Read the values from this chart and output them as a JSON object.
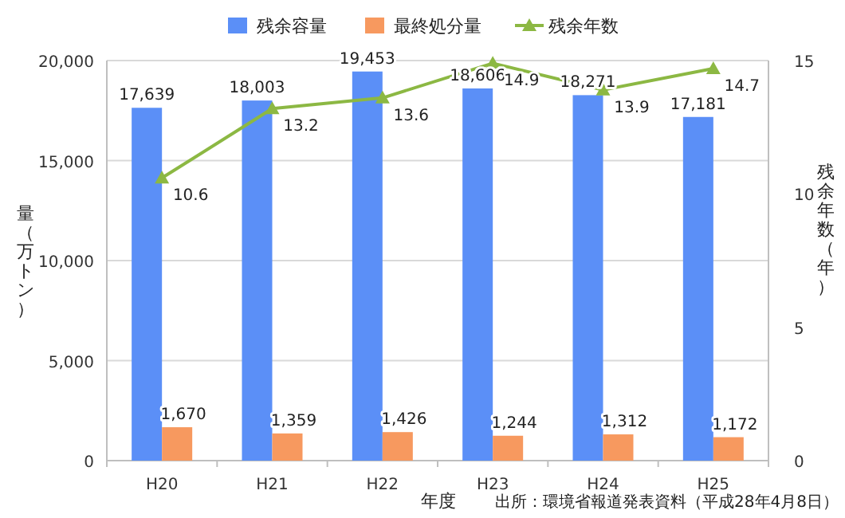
{
  "chart_data": {
    "type": "bar",
    "xlabel": "年度",
    "ylabel": "量（万トン）",
    "y2label": "残余年数（年）",
    "categories": [
      "H20",
      "H21",
      "H22",
      "H23",
      "H24",
      "H25"
    ],
    "series": [
      {
        "name": "残余容量",
        "color": "#5b8ff7",
        "values": [
          17639,
          18003,
          19453,
          18606,
          18271,
          17181
        ],
        "value_labels": [
          "17,639",
          "18,003",
          "19,453",
          "18,606",
          "18,271",
          "17,181"
        ]
      },
      {
        "name": "最終処分量",
        "color": "#f7995f",
        "values": [
          1670,
          1359,
          1426,
          1244,
          1312,
          1172
        ],
        "value_labels": [
          "1,670",
          "1,359",
          "1,426",
          "1,244",
          "1,312",
          "1,172"
        ]
      },
      {
        "name": "残余年数",
        "type": "line",
        "axis": "y2",
        "marker": "triangle",
        "color": "#8cb843",
        "values": [
          10.6,
          13.2,
          13.6,
          14.9,
          13.9,
          14.7
        ],
        "value_labels": [
          "10.6",
          "13.2",
          "13.6",
          "14.9",
          "13.9",
          "14.7"
        ]
      }
    ],
    "ylim": [
      0,
      20000
    ],
    "yticks": [
      {
        "value": 0,
        "label": "0"
      },
      {
        "value": 5000,
        "label": "5,000"
      },
      {
        "value": 10000,
        "label": "10,000"
      },
      {
        "value": 15000,
        "label": "15,000"
      },
      {
        "value": 20000,
        "label": "20,000"
      }
    ],
    "y2lim": [
      0,
      15
    ],
    "y2ticks": [
      0,
      5,
      10,
      15
    ],
    "grid": "y",
    "legend": "top",
    "annotations": [
      "出所：環境省報道発表資料（平成28年4月8日）"
    ]
  }
}
